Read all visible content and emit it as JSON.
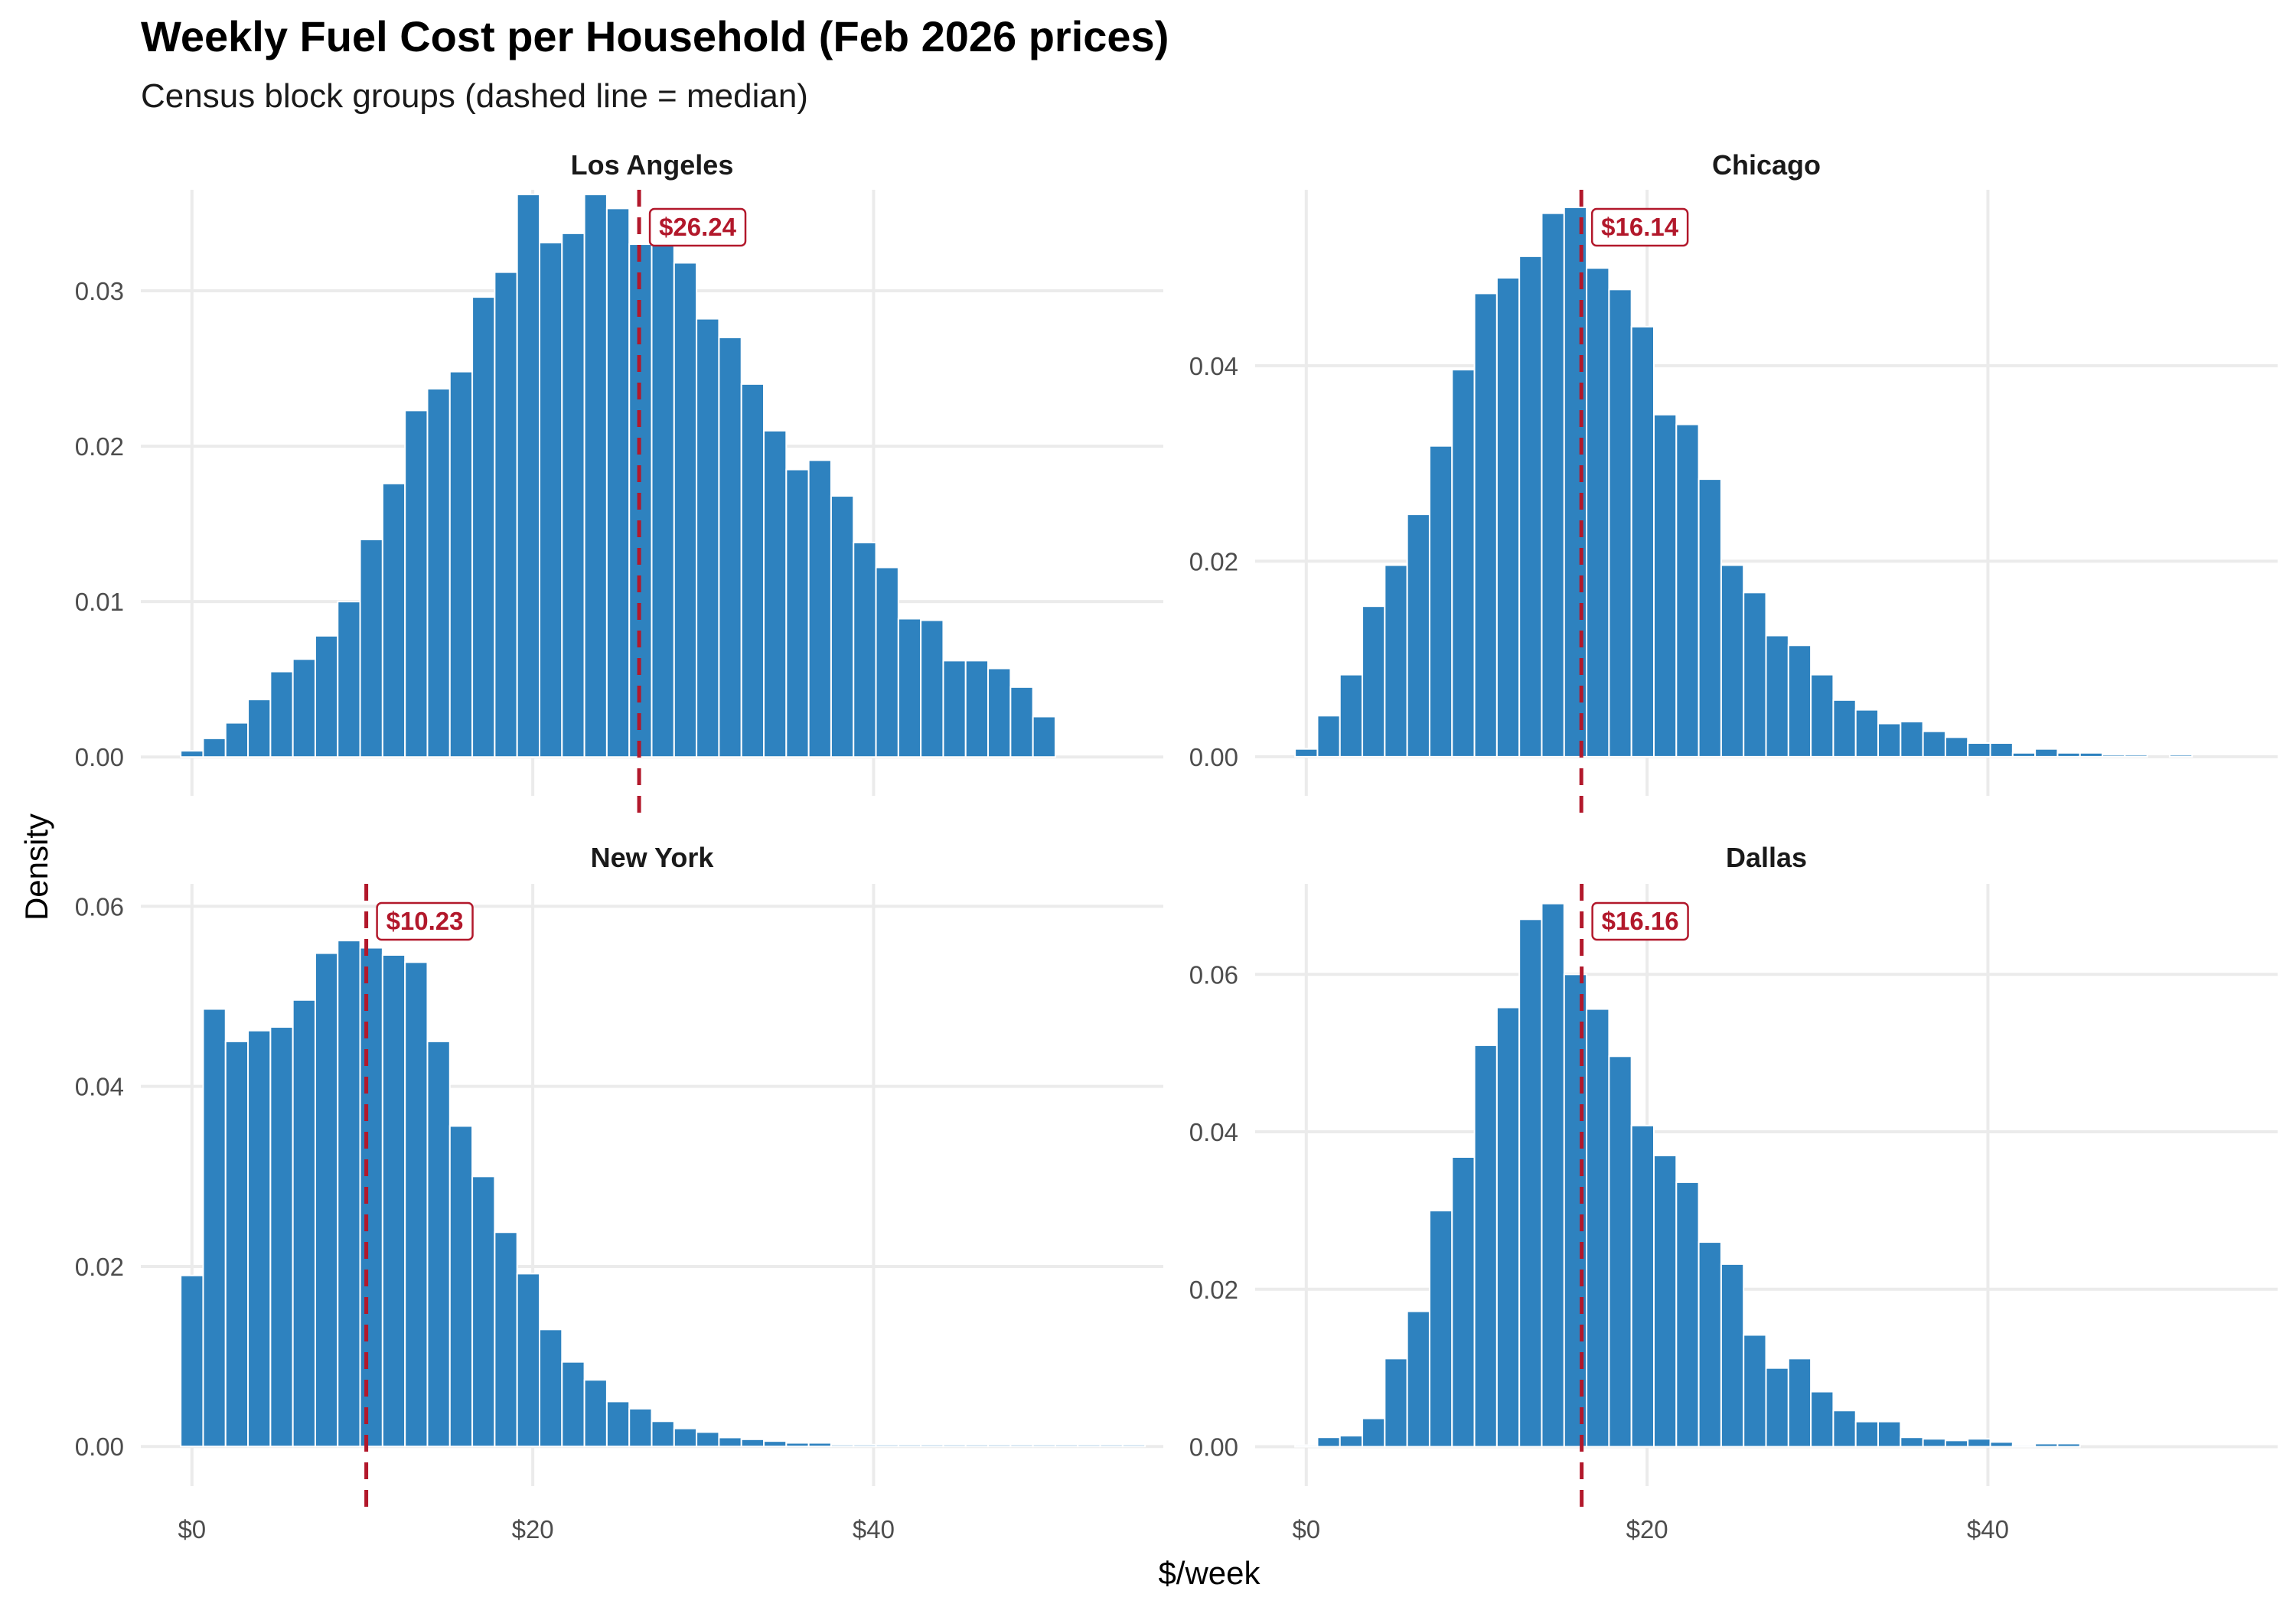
{
  "chart_data": {
    "type": "bar",
    "title": "Weekly Fuel Cost per Household (Feb 2026 prices)",
    "subtitle": "Census block groups (dashed line = median)",
    "xlabel": "$/week",
    "ylabel": "Density",
    "x_bin_width": 1.316,
    "x_first_bin_center": 0,
    "xlim": [
      -3,
      57
    ],
    "x_ticks": [
      0,
      20,
      40
    ],
    "x_tick_labels": [
      "$0",
      "$20",
      "$40"
    ],
    "colors": {
      "bar": "#2e82bf",
      "median": "#b2182b",
      "grid": "#ebebeb"
    },
    "panels": [
      {
        "name": "Los Angeles",
        "ylim": [
          -0.0025,
          0.0365
        ],
        "y_ticks": [
          0,
          0.01,
          0.02,
          0.03
        ],
        "y_tick_labels": [
          "0.00",
          "0.01",
          "0.02",
          "0.03"
        ],
        "median": 26.24,
        "median_label": "$26.24",
        "values": [
          0.0004,
          0.0012,
          0.0022,
          0.0037,
          0.0055,
          0.0063,
          0.0078,
          0.01,
          0.014,
          0.0176,
          0.0223,
          0.0237,
          0.0248,
          0.0296,
          0.0312,
          0.0362,
          0.0331,
          0.0337,
          0.0362,
          0.0353,
          0.033,
          0.0337,
          0.0318,
          0.0282,
          0.027,
          0.024,
          0.021,
          0.0185,
          0.0191,
          0.0168,
          0.0138,
          0.0122,
          0.0089,
          0.0088,
          0.0062,
          0.0062,
          0.0057,
          0.0045,
          0.0026
        ]
      },
      {
        "name": "Chicago",
        "ylim": [
          -0.004,
          0.058
        ],
        "y_ticks": [
          0,
          0.02,
          0.04
        ],
        "y_tick_labels": [
          "0.00",
          "0.02",
          "0.04"
        ],
        "median": 16.14,
        "median_label": "$16.14",
        "values": [
          0.0008,
          0.0042,
          0.0084,
          0.0154,
          0.0196,
          0.0248,
          0.0318,
          0.0396,
          0.0474,
          0.049,
          0.0512,
          0.0556,
          0.0562,
          0.05,
          0.0478,
          0.044,
          0.035,
          0.034,
          0.0284,
          0.0196,
          0.0168,
          0.0124,
          0.0114,
          0.0084,
          0.0058,
          0.0048,
          0.0034,
          0.0036,
          0.0026,
          0.002,
          0.0014,
          0.0014,
          0.0004,
          0.0008,
          0.0004,
          0.0004,
          0.0002,
          0.0002,
          0,
          0.0002
        ]
      },
      {
        "name": "New York",
        "ylim": [
          -0.0044,
          0.0625
        ],
        "y_ticks": [
          0,
          0.02,
          0.04,
          0.06
        ],
        "y_tick_labels": [
          "0.00",
          "0.02",
          "0.04",
          "0.06"
        ],
        "median": 10.23,
        "median_label": "$10.23",
        "values": [
          0.019,
          0.0486,
          0.045,
          0.0462,
          0.0466,
          0.0496,
          0.0548,
          0.0562,
          0.0554,
          0.0546,
          0.0538,
          0.045,
          0.0356,
          0.03,
          0.0238,
          0.0192,
          0.013,
          0.0094,
          0.0074,
          0.005,
          0.0042,
          0.0028,
          0.002,
          0.0016,
          0.001,
          0.0008,
          0.0006,
          0.0004,
          0.0004,
          0.0002,
          0.0002,
          0.0002,
          0.0002,
          0.0002,
          0.0002,
          0.0002,
          0.0002,
          0.0002,
          0.0002,
          0.0002,
          0.0002,
          0.0002,
          0.0002
        ]
      },
      {
        "name": "Dallas",
        "ylim": [
          -0.005,
          0.0715
        ],
        "y_ticks": [
          0,
          0.02,
          0.04,
          0.06
        ],
        "y_tick_labels": [
          "0.00",
          "0.02",
          "0.04",
          "0.06"
        ],
        "median": 16.16,
        "median_label": "$16.16",
        "values": [
          0.0002,
          0.0012,
          0.0014,
          0.0036,
          0.0112,
          0.0172,
          0.03,
          0.0368,
          0.051,
          0.0558,
          0.067,
          0.069,
          0.06,
          0.0556,
          0.0496,
          0.0408,
          0.037,
          0.0336,
          0.026,
          0.0232,
          0.0142,
          0.01,
          0.0112,
          0.007,
          0.0046,
          0.0032,
          0.0032,
          0.0012,
          0.001,
          0.0008,
          0.001,
          0.0006,
          0.0002,
          0.0004,
          0.0004
        ]
      }
    ]
  }
}
